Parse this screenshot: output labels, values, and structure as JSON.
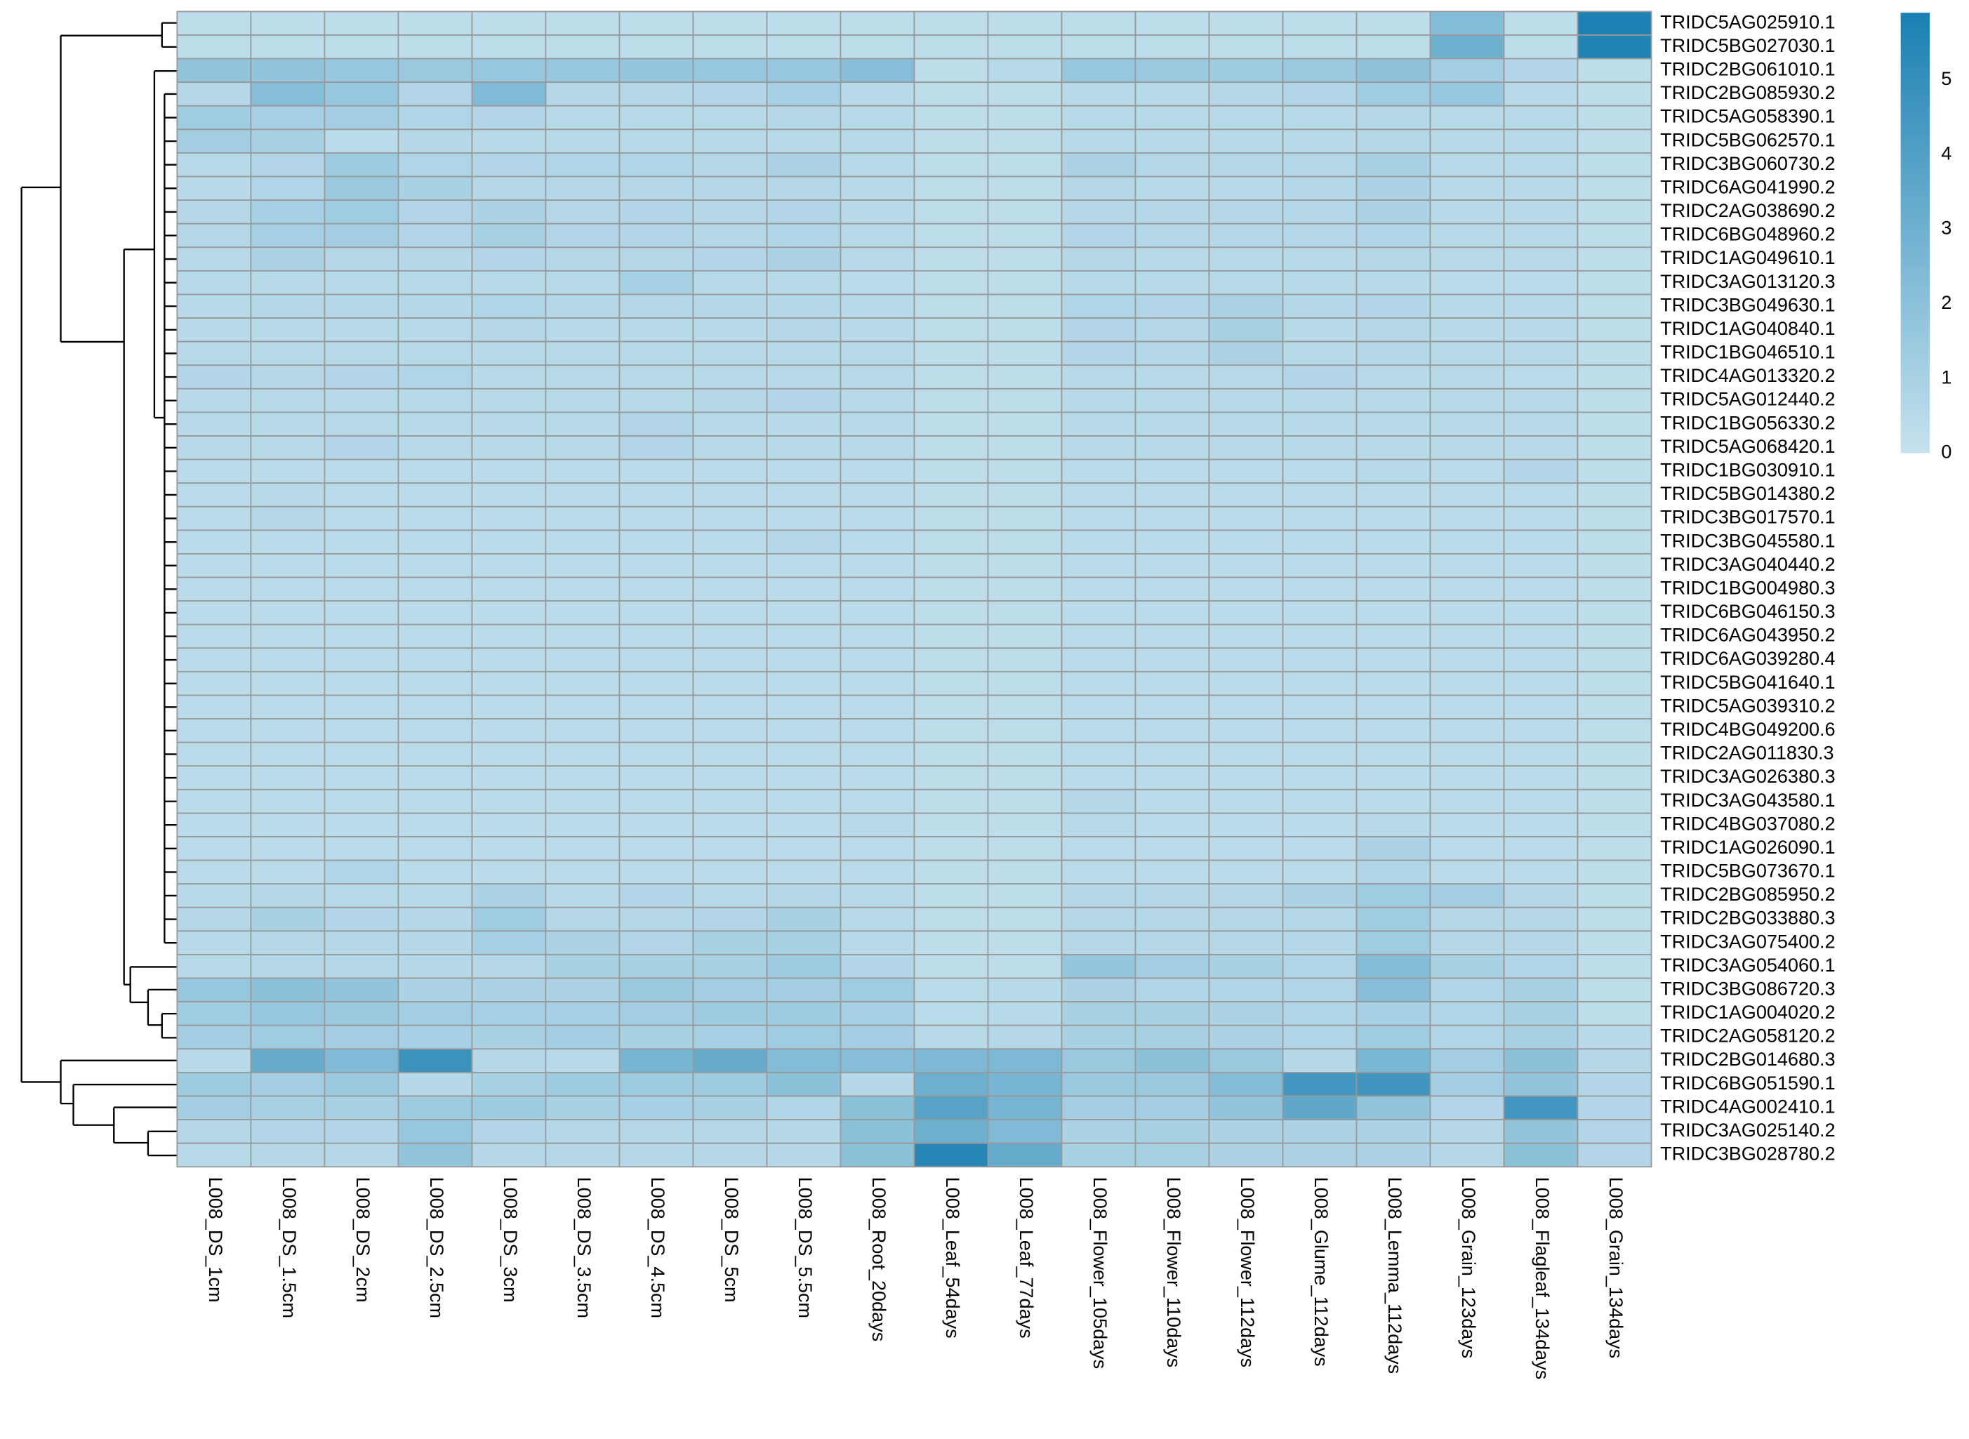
{
  "chart_data": {
    "type": "heatmap",
    "rows": [
      "TRIDC5AG025910.1",
      "TRIDC5BG027030.1",
      "TRIDC2BG061010.1",
      "TRIDC2BG085930.2",
      "TRIDC5AG058390.1",
      "TRIDC5BG062570.1",
      "TRIDC3BG060730.2",
      "TRIDC6AG041990.2",
      "TRIDC2AG038690.2",
      "TRIDC6BG048960.2",
      "TRIDC1AG049610.1",
      "TRIDC3AG013120.3",
      "TRIDC3BG049630.1",
      "TRIDC1AG040840.1",
      "TRIDC1BG046510.1",
      "TRIDC4AG013320.2",
      "TRIDC5AG012440.2",
      "TRIDC1BG056330.2",
      "TRIDC5AG068420.1",
      "TRIDC1BG030910.1",
      "TRIDC5BG014380.2",
      "TRIDC3BG017570.1",
      "TRIDC3BG045580.1",
      "TRIDC3AG040440.2",
      "TRIDC1BG004980.3",
      "TRIDC6BG046150.3",
      "TRIDC6AG043950.2",
      "TRIDC6AG039280.4",
      "TRIDC5BG041640.1",
      "TRIDC5AG039310.2",
      "TRIDC4BG049200.6",
      "TRIDC2AG011830.3",
      "TRIDC3AG026380.3",
      "TRIDC3AG043580.1",
      "TRIDC4BG037080.2",
      "TRIDC1AG026090.1",
      "TRIDC5BG073670.1",
      "TRIDC2BG085950.2",
      "TRIDC2BG033880.3",
      "TRIDC3AG075400.2",
      "TRIDC3AG054060.1",
      "TRIDC3BG086720.3",
      "TRIDC1AG004020.2",
      "TRIDC2AG058120.2",
      "TRIDC2BG014680.3",
      "TRIDC6BG051590.1",
      "TRIDC4AG002410.1",
      "TRIDC3AG025140.2",
      "TRIDC3BG028780.2"
    ],
    "columns": [
      "L008_DS_1cm",
      "L008_DS_1.5cm",
      "L008_DS_2cm",
      "L008_DS_2.5cm",
      "L008_DS_3cm",
      "L008_DS_3.5cm",
      "L008_DS_4.5cm",
      "L008_DS_5cm",
      "L008_DS_5.5cm",
      "L008_Root_20days",
      "L008_Leaf_54days",
      "L008_Leaf_77days",
      "L008_Flower_105days",
      "L008_Flower_110days",
      "L008_Flower_112days",
      "L008_Glume_112days",
      "L008_Lemma_112days",
      "L008_Grain_123days",
      "L008_Flagleaf_134days",
      "L008_Grain_134days"
    ],
    "values": [
      [
        0.3,
        0.3,
        0.3,
        0.3,
        0.3,
        0.3,
        0.3,
        0.3,
        0.3,
        0.3,
        0.3,
        0.3,
        0.3,
        0.3,
        0.3,
        0.3,
        0.3,
        2.3,
        0.3,
        5.8
      ],
      [
        0.3,
        0.3,
        0.3,
        0.3,
        0.3,
        0.3,
        0.3,
        0.3,
        0.3,
        0.3,
        0.3,
        0.3,
        0.3,
        0.3,
        0.3,
        0.3,
        0.3,
        3.0,
        0.3,
        5.7
      ],
      [
        1.8,
        1.8,
        1.6,
        1.5,
        1.6,
        1.6,
        1.7,
        1.6,
        1.6,
        2.2,
        0.3,
        0.5,
        1.6,
        1.5,
        1.4,
        1.5,
        1.9,
        1.2,
        0.7,
        0.3
      ],
      [
        0.6,
        2.2,
        1.6,
        0.7,
        2.4,
        0.6,
        0.6,
        0.7,
        1.1,
        0.5,
        0.3,
        0.3,
        0.5,
        0.5,
        0.6,
        0.7,
        1.3,
        1.6,
        0.5,
        0.3
      ],
      [
        1.3,
        1.1,
        1.2,
        0.8,
        0.7,
        0.5,
        0.5,
        0.5,
        0.6,
        0.5,
        0.3,
        0.3,
        0.5,
        0.5,
        0.5,
        0.5,
        0.6,
        0.5,
        0.5,
        0.3
      ],
      [
        1.2,
        1.0,
        0.4,
        0.6,
        0.5,
        0.5,
        0.5,
        0.5,
        0.5,
        0.5,
        0.3,
        0.3,
        0.5,
        0.5,
        0.5,
        0.5,
        0.6,
        0.5,
        0.5,
        0.3
      ],
      [
        0.5,
        0.7,
        1.4,
        0.8,
        0.7,
        0.8,
        0.8,
        0.6,
        0.9,
        0.5,
        0.3,
        0.3,
        0.9,
        0.6,
        0.6,
        0.6,
        1.0,
        0.5,
        0.5,
        0.3
      ],
      [
        0.5,
        0.8,
        1.5,
        1.0,
        0.6,
        0.6,
        0.6,
        0.6,
        0.6,
        0.5,
        0.3,
        0.3,
        0.6,
        0.5,
        0.5,
        0.6,
        0.9,
        0.5,
        0.5,
        0.3
      ],
      [
        0.6,
        1.1,
        1.3,
        0.7,
        0.9,
        0.6,
        0.7,
        0.6,
        0.7,
        0.5,
        0.3,
        0.3,
        0.6,
        0.6,
        0.6,
        0.6,
        0.9,
        0.5,
        0.5,
        0.3
      ],
      [
        0.6,
        1.1,
        1.2,
        0.7,
        1.0,
        0.7,
        0.7,
        0.6,
        0.8,
        0.5,
        0.3,
        0.3,
        0.7,
        0.6,
        0.6,
        0.6,
        0.8,
        0.5,
        0.5,
        0.3
      ],
      [
        0.5,
        0.9,
        0.6,
        0.6,
        0.7,
        0.6,
        0.6,
        0.7,
        0.9,
        0.5,
        0.3,
        0.3,
        0.6,
        0.5,
        0.5,
        0.5,
        0.6,
        0.5,
        0.5,
        0.3
      ],
      [
        0.5,
        0.5,
        0.5,
        0.5,
        0.5,
        0.5,
        1.1,
        0.5,
        0.5,
        0.4,
        0.3,
        0.3,
        0.5,
        0.5,
        0.5,
        0.5,
        0.5,
        0.4,
        0.4,
        0.3
      ],
      [
        0.5,
        0.6,
        0.6,
        0.6,
        0.8,
        0.6,
        0.6,
        0.6,
        0.6,
        0.5,
        0.3,
        0.3,
        0.8,
        0.7,
        0.9,
        0.6,
        0.7,
        0.5,
        0.5,
        0.3
      ],
      [
        0.5,
        0.5,
        0.5,
        0.5,
        0.6,
        0.5,
        0.5,
        0.5,
        0.6,
        0.5,
        0.3,
        0.3,
        0.7,
        0.6,
        1.0,
        0.5,
        0.6,
        0.5,
        0.5,
        0.3
      ],
      [
        0.5,
        0.5,
        0.5,
        0.5,
        0.5,
        0.5,
        0.5,
        0.5,
        0.5,
        0.5,
        0.3,
        0.3,
        0.7,
        0.6,
        0.9,
        0.5,
        0.6,
        0.5,
        0.5,
        0.3
      ],
      [
        0.7,
        0.6,
        0.7,
        0.8,
        0.5,
        0.5,
        0.5,
        0.5,
        0.5,
        0.5,
        0.3,
        0.3,
        0.5,
        0.5,
        0.5,
        0.7,
        0.5,
        0.5,
        0.4,
        0.3
      ],
      [
        0.5,
        0.5,
        0.5,
        0.5,
        0.5,
        0.5,
        0.5,
        0.6,
        0.7,
        0.5,
        0.3,
        0.3,
        0.5,
        0.5,
        0.5,
        0.5,
        0.5,
        0.5,
        0.5,
        0.3
      ],
      [
        0.5,
        0.5,
        0.5,
        0.5,
        0.5,
        0.5,
        0.7,
        0.5,
        0.5,
        0.5,
        0.3,
        0.3,
        0.5,
        0.5,
        0.5,
        0.5,
        0.5,
        0.5,
        0.5,
        0.3
      ],
      [
        0.5,
        0.5,
        0.7,
        0.5,
        0.5,
        0.5,
        0.7,
        0.5,
        0.5,
        0.5,
        0.3,
        0.3,
        0.5,
        0.5,
        0.5,
        0.5,
        0.5,
        0.5,
        0.5,
        0.3
      ],
      [
        0.4,
        0.4,
        0.4,
        0.4,
        0.4,
        0.4,
        0.4,
        0.4,
        0.4,
        0.4,
        0.3,
        0.3,
        0.4,
        0.4,
        0.4,
        0.4,
        0.5,
        0.4,
        0.7,
        0.3
      ],
      [
        0.4,
        0.5,
        0.4,
        0.4,
        0.4,
        0.4,
        0.4,
        0.4,
        0.4,
        0.4,
        0.3,
        0.3,
        0.4,
        0.4,
        0.4,
        0.4,
        0.4,
        0.4,
        0.4,
        0.3
      ],
      [
        0.4,
        0.6,
        0.4,
        0.4,
        0.4,
        0.4,
        0.4,
        0.4,
        0.4,
        0.4,
        0.3,
        0.3,
        0.4,
        0.4,
        0.4,
        0.4,
        0.4,
        0.4,
        0.4,
        0.3
      ],
      [
        0.4,
        0.4,
        0.4,
        0.4,
        0.4,
        0.4,
        0.4,
        0.4,
        0.6,
        0.4,
        0.3,
        0.3,
        0.4,
        0.4,
        0.4,
        0.4,
        0.4,
        0.4,
        0.4,
        0.3
      ],
      [
        0.4,
        0.4,
        0.4,
        0.4,
        0.4,
        0.4,
        0.4,
        0.4,
        0.4,
        0.4,
        0.3,
        0.3,
        0.4,
        0.4,
        0.4,
        0.4,
        0.4,
        0.4,
        0.4,
        0.3
      ],
      [
        0.4,
        0.4,
        0.4,
        0.4,
        0.4,
        0.4,
        0.4,
        0.4,
        0.4,
        0.4,
        0.3,
        0.3,
        0.4,
        0.4,
        0.4,
        0.4,
        0.4,
        0.4,
        0.4,
        0.3
      ],
      [
        0.4,
        0.4,
        0.4,
        0.4,
        0.4,
        0.4,
        0.4,
        0.4,
        0.4,
        0.4,
        0.3,
        0.3,
        0.4,
        0.4,
        0.4,
        0.4,
        0.4,
        0.4,
        0.4,
        0.3
      ],
      [
        0.4,
        0.4,
        0.4,
        0.4,
        0.4,
        0.4,
        0.4,
        0.4,
        0.4,
        0.4,
        0.3,
        0.3,
        0.4,
        0.4,
        0.4,
        0.4,
        0.4,
        0.4,
        0.4,
        0.3
      ],
      [
        0.4,
        0.4,
        0.4,
        0.4,
        0.4,
        0.4,
        0.4,
        0.4,
        0.4,
        0.4,
        0.3,
        0.3,
        0.4,
        0.4,
        0.4,
        0.4,
        0.4,
        0.4,
        0.4,
        0.3
      ],
      [
        0.4,
        0.4,
        0.4,
        0.4,
        0.4,
        0.4,
        0.4,
        0.4,
        0.4,
        0.4,
        0.3,
        0.3,
        0.4,
        0.4,
        0.4,
        0.4,
        0.4,
        0.4,
        0.4,
        0.3
      ],
      [
        0.4,
        0.4,
        0.4,
        0.4,
        0.4,
        0.4,
        0.4,
        0.4,
        0.4,
        0.4,
        0.3,
        0.3,
        0.4,
        0.4,
        0.4,
        0.4,
        0.4,
        0.4,
        0.4,
        0.3
      ],
      [
        0.4,
        0.4,
        0.4,
        0.4,
        0.4,
        0.4,
        0.4,
        0.4,
        0.4,
        0.4,
        0.3,
        0.3,
        0.4,
        0.4,
        0.4,
        0.4,
        0.4,
        0.4,
        0.4,
        0.3
      ],
      [
        0.4,
        0.4,
        0.4,
        0.4,
        0.4,
        0.4,
        0.4,
        0.4,
        0.4,
        0.4,
        0.3,
        0.3,
        0.4,
        0.4,
        0.4,
        0.4,
        0.4,
        0.4,
        0.4,
        0.3
      ],
      [
        0.4,
        0.4,
        0.4,
        0.4,
        0.4,
        0.4,
        0.4,
        0.4,
        0.4,
        0.4,
        0.3,
        0.3,
        0.4,
        0.4,
        0.4,
        0.4,
        0.4,
        0.4,
        0.4,
        0.3
      ],
      [
        0.4,
        0.4,
        0.4,
        0.4,
        0.4,
        0.4,
        0.4,
        0.4,
        0.4,
        0.4,
        0.3,
        0.3,
        0.6,
        0.4,
        0.4,
        0.4,
        0.4,
        0.4,
        0.4,
        0.3
      ],
      [
        0.4,
        0.4,
        0.4,
        0.4,
        0.4,
        0.4,
        0.4,
        0.4,
        0.4,
        0.5,
        0.3,
        0.3,
        0.5,
        0.4,
        0.4,
        0.4,
        0.5,
        0.4,
        0.4,
        0.3
      ],
      [
        0.4,
        0.4,
        0.4,
        0.4,
        0.4,
        0.4,
        0.4,
        0.4,
        0.4,
        0.4,
        0.3,
        0.3,
        0.4,
        0.4,
        0.4,
        0.4,
        0.9,
        0.4,
        0.4,
        0.3
      ],
      [
        0.4,
        0.4,
        0.8,
        0.4,
        0.4,
        0.4,
        0.4,
        0.4,
        0.4,
        0.4,
        0.3,
        0.3,
        0.4,
        0.4,
        0.4,
        0.4,
        0.8,
        0.4,
        0.4,
        0.3
      ],
      [
        0.5,
        0.6,
        0.5,
        0.5,
        0.9,
        0.5,
        0.7,
        0.5,
        0.6,
        0.5,
        0.3,
        0.3,
        0.6,
        0.6,
        0.6,
        0.9,
        1.3,
        1.2,
        0.6,
        0.3
      ],
      [
        0.6,
        1.0,
        0.7,
        0.6,
        1.3,
        0.6,
        0.6,
        0.7,
        1.0,
        0.5,
        0.3,
        0.3,
        0.6,
        0.6,
        0.6,
        0.6,
        1.3,
        0.6,
        0.6,
        0.3
      ],
      [
        0.5,
        0.6,
        0.6,
        0.6,
        1.1,
        0.9,
        0.7,
        1.0,
        1.0,
        0.5,
        0.3,
        0.3,
        0.6,
        0.6,
        0.6,
        0.6,
        1.3,
        0.6,
        0.6,
        0.3
      ],
      [
        0.5,
        0.6,
        0.6,
        0.6,
        0.6,
        1.0,
        1.0,
        1.0,
        1.4,
        0.7,
        0.3,
        0.3,
        1.7,
        1.2,
        1.0,
        0.8,
        2.3,
        1.0,
        0.8,
        0.3
      ],
      [
        1.6,
        2.0,
        1.8,
        0.9,
        0.9,
        0.9,
        1.5,
        1.2,
        1.2,
        1.3,
        0.4,
        0.5,
        0.9,
        0.8,
        0.8,
        0.8,
        2.2,
        0.8,
        1.0,
        0.3
      ],
      [
        1.3,
        1.6,
        1.5,
        1.2,
        1.1,
        1.1,
        1.2,
        1.4,
        1.4,
        1.1,
        0.4,
        0.5,
        1.0,
        1.0,
        0.9,
        0.8,
        1.1,
        0.8,
        1.0,
        0.3
      ],
      [
        1.2,
        1.3,
        1.2,
        1.1,
        1.0,
        1.2,
        1.0,
        1.1,
        1.3,
        1.2,
        0.5,
        0.6,
        1.0,
        1.0,
        0.9,
        0.8,
        1.3,
        0.8,
        1.0,
        0.5
      ],
      [
        0.5,
        3.3,
        2.4,
        4.8,
        0.6,
        0.5,
        2.7,
        3.3,
        2.3,
        2.2,
        2.5,
        2.5,
        1.5,
        2.0,
        1.5,
        0.6,
        2.6,
        1.2,
        2.0,
        0.6
      ],
      [
        1.4,
        1.2,
        1.5,
        0.6,
        1.0,
        1.4,
        1.4,
        1.4,
        2.0,
        0.6,
        3.1,
        2.7,
        1.5,
        1.5,
        2.3,
        4.5,
        4.6,
        1.2,
        1.8,
        0.7
      ],
      [
        1.2,
        1.0,
        1.0,
        1.4,
        1.4,
        1.0,
        1.1,
        1.0,
        0.8,
        2.0,
        3.8,
        2.7,
        1.2,
        1.2,
        1.8,
        3.5,
        1.8,
        0.7,
        4.5,
        0.7
      ],
      [
        0.6,
        0.7,
        0.7,
        1.6,
        0.7,
        0.6,
        0.6,
        0.6,
        0.6,
        2.0,
        3.0,
        2.4,
        0.9,
        1.0,
        0.9,
        0.9,
        0.9,
        0.6,
        1.8,
        0.7
      ],
      [
        0.5,
        0.6,
        0.6,
        1.8,
        0.6,
        0.6,
        0.6,
        0.6,
        0.6,
        2.0,
        5.5,
        3.4,
        1.0,
        1.0,
        0.9,
        0.9,
        0.9,
        0.6,
        2.0,
        0.7
      ]
    ],
    "clim": [
      0,
      5.9
    ],
    "cticks": [
      0,
      1,
      2,
      3,
      4,
      5
    ],
    "colors": [
      "#c6e2ee",
      "#1a80b2"
    ]
  }
}
